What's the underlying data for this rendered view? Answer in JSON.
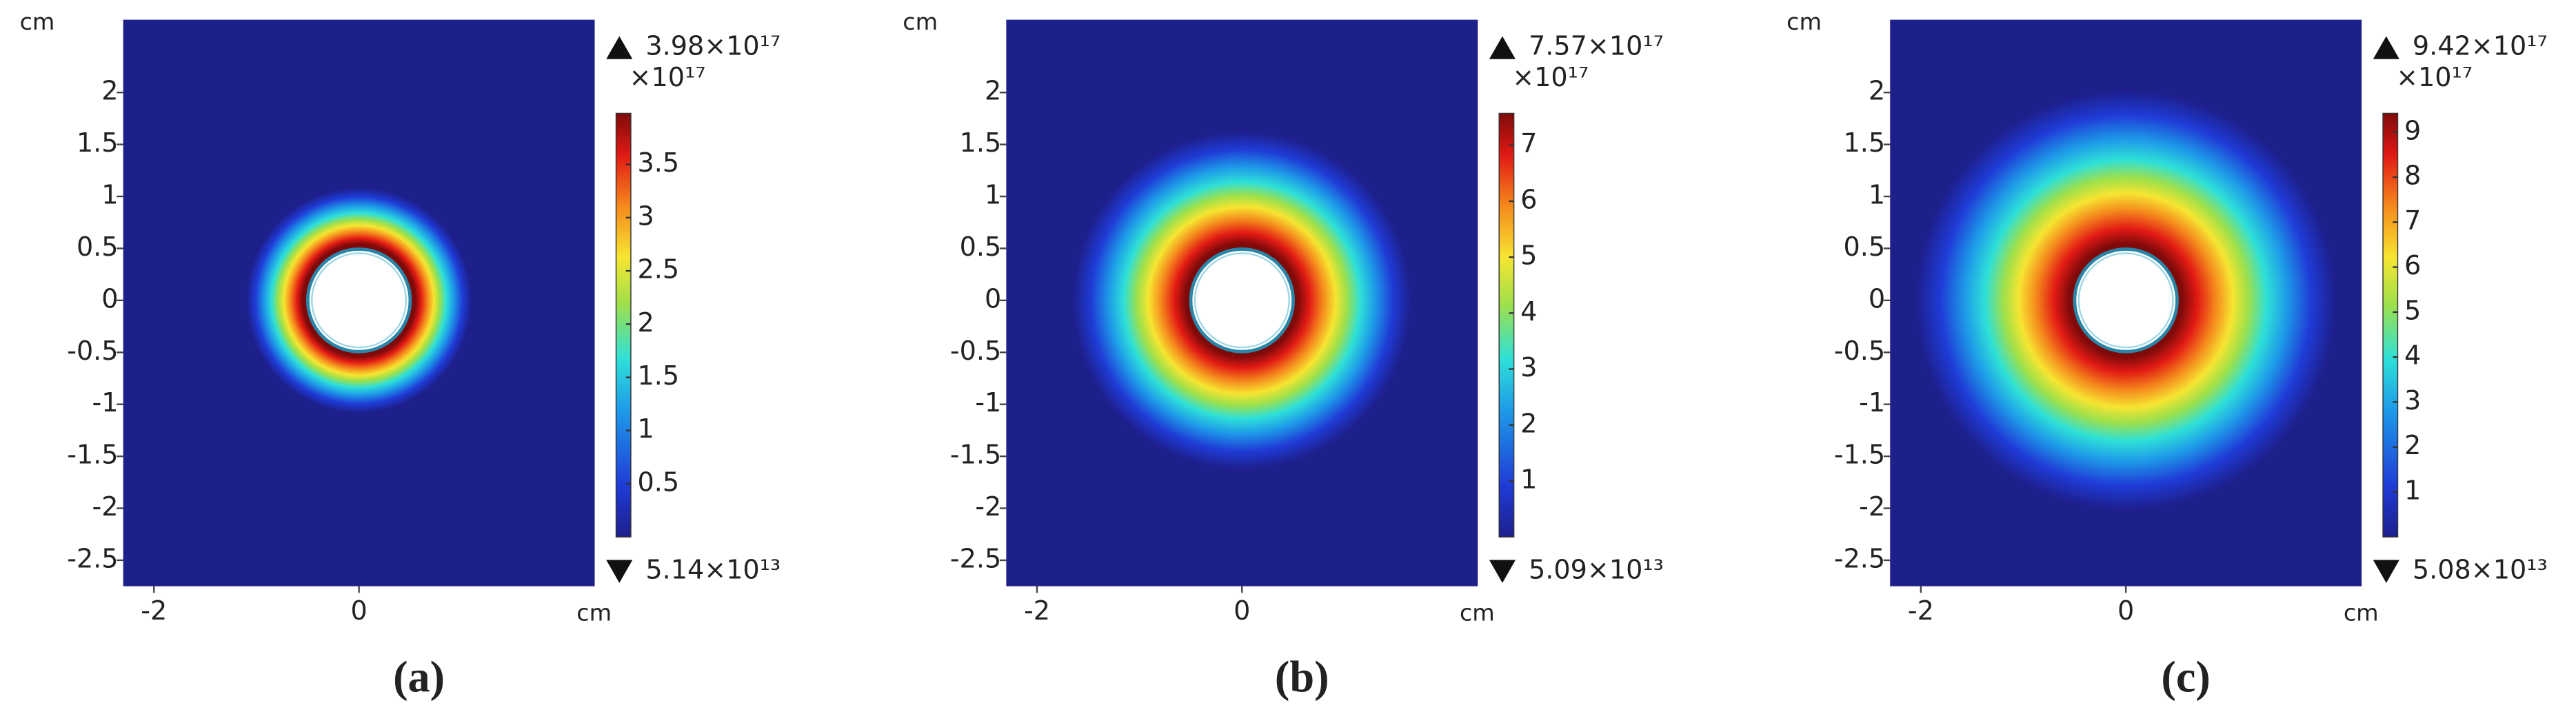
{
  "chart_data": [
    {
      "type": "heatmap",
      "title": "(a)",
      "xlabel": "cm",
      "ylabel": "cm",
      "xlim": [
        -2.3,
        2.3
      ],
      "ylim": [
        -2.75,
        2.7
      ],
      "xticks": [
        -2,
        0
      ],
      "yticks": [
        2,
        1.5,
        1,
        0.5,
        0,
        -0.5,
        -1,
        -1.5,
        -2,
        -2.5
      ],
      "colorbar_scale": "×10¹⁷",
      "cmax": {
        "value": 3.98,
        "label": "3.98×10¹⁷"
      },
      "cmin": {
        "value": 0.000514,
        "label": "5.14×10¹³"
      },
      "cticks": [
        3.5,
        3,
        2.5,
        2,
        1.5,
        1,
        0.5
      ]
    },
    {
      "type": "heatmap",
      "title": "(b)",
      "xlabel": "cm",
      "ylabel": "cm",
      "xlim": [
        -2.3,
        2.3
      ],
      "ylim": [
        -2.75,
        2.7
      ],
      "xticks": [
        -2,
        0
      ],
      "yticks": [
        2,
        1.5,
        1,
        0.5,
        0,
        -0.5,
        -1,
        -1.5,
        -2,
        -2.5
      ],
      "colorbar_scale": "×10¹⁷",
      "cmax": {
        "value": 7.57,
        "label": "7.57×10¹⁷"
      },
      "cmin": {
        "value": 0.000509,
        "label": "5.09×10¹³"
      },
      "cticks": [
        7,
        6,
        5,
        4,
        3,
        2,
        1
      ]
    },
    {
      "type": "heatmap",
      "title": "(c)",
      "xlabel": "cm",
      "ylabel": "cm",
      "xlim": [
        -2.3,
        2.3
      ],
      "ylim": [
        -2.75,
        2.7
      ],
      "xticks": [
        -2,
        0
      ],
      "yticks": [
        2,
        1.5,
        1,
        0.5,
        0,
        -0.5,
        -1,
        -1.5,
        -2,
        -2.5
      ],
      "colorbar_scale": "×10¹⁷",
      "cmax": {
        "value": 9.42,
        "label": "9.42×10¹⁷"
      },
      "cmin": {
        "value": 0.000508,
        "label": "5.08×10¹³"
      },
      "cticks": [
        9,
        8,
        7,
        6,
        5,
        4,
        3,
        2,
        1
      ]
    }
  ]
}
